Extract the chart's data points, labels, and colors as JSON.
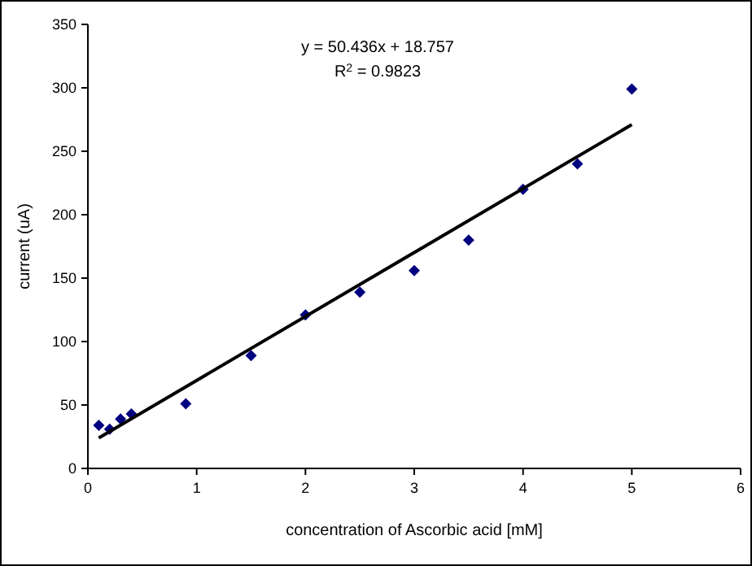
{
  "chart_data": {
    "type": "scatter",
    "xlabel": "concentration of Ascorbic acid [mM]",
    "ylabel": "current (uA)",
    "annotations": [
      "y = 50.436x + 18.757",
      "R$^{2}$ = 0.9823"
    ],
    "xlim": [
      0,
      6
    ],
    "xticks": [
      0,
      1,
      2,
      3,
      4,
      5,
      6
    ],
    "ylim": [
      0,
      350
    ],
    "yticks": [
      0,
      50,
      100,
      150,
      200,
      250,
      300,
      350
    ],
    "grid": false,
    "series": [
      {
        "marker": "diamond",
        "color": "#000080",
        "x": [
          0.1,
          0.2,
          0.3,
          0.4,
          0.9,
          1.5,
          2,
          2.5,
          3,
          3.5,
          4,
          4.5,
          5
        ],
        "values": [
          34,
          31,
          39,
          43,
          51,
          89,
          121,
          139,
          156,
          180,
          220,
          240,
          299
        ]
      },
      {
        "type": "line",
        "color": "#000000",
        "x": [
          0.1,
          5
        ],
        "values": [
          24,
          271
        ],
        "line_style": "solid"
      }
    ]
  }
}
